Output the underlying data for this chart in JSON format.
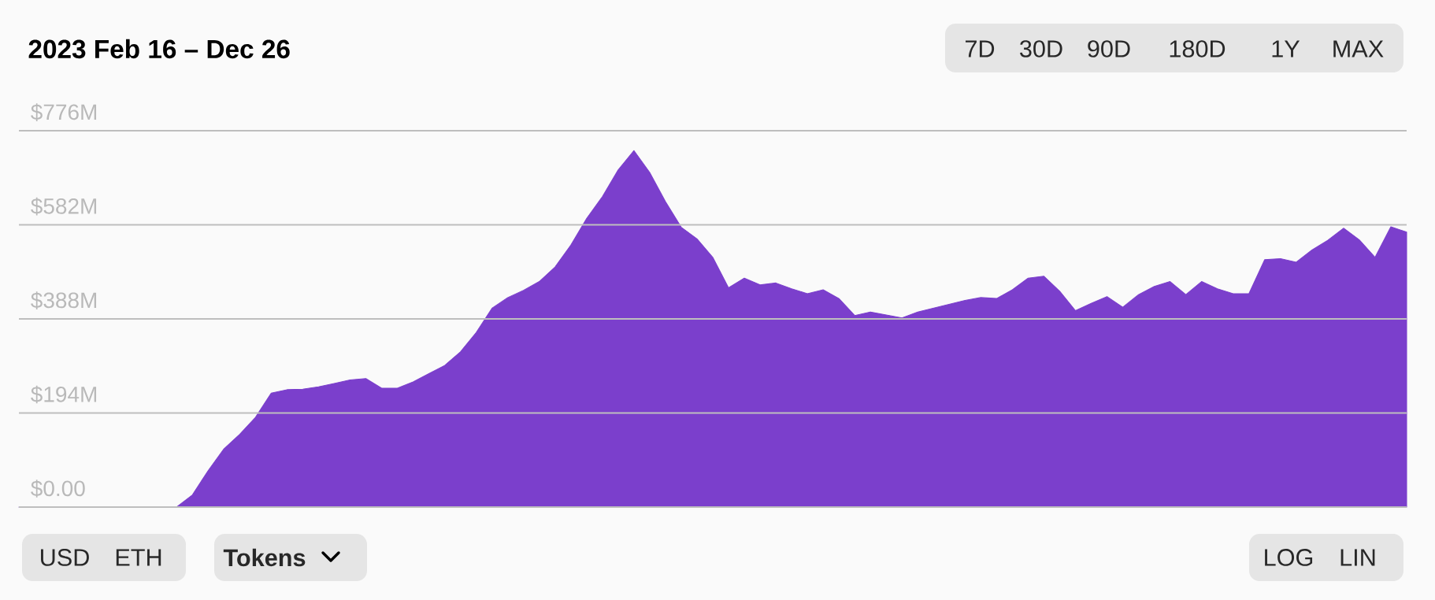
{
  "chart_data": {
    "type": "area",
    "title": "2023 Feb 16 – Dec 26",
    "categories": [
      null,
      null,
      null,
      null,
      null,
      null,
      null,
      null,
      null,
      null,
      null,
      null,
      null,
      null,
      null,
      null,
      null,
      null,
      null,
      null,
      null,
      null,
      null,
      null,
      null,
      null,
      null,
      null,
      null,
      null,
      null,
      null,
      null,
      null,
      null,
      null,
      null,
      null,
      null,
      null,
      null,
      null,
      null,
      null,
      null,
      null,
      null,
      null,
      null,
      null,
      null,
      null,
      null,
      null,
      null,
      null,
      null,
      null,
      null,
      null,
      null,
      null,
      null,
      null,
      null,
      null,
      null,
      null,
      null,
      null,
      null,
      null,
      null,
      null,
      null,
      null,
      null,
      null,
      null,
      null,
      null,
      null,
      null,
      null,
      null,
      null,
      null,
      null,
      null
    ],
    "series": [
      {
        "color": "#7b3fcc",
        "values": [
          0,
          0,
          0,
          0,
          0,
          0,
          0,
          0,
          0,
          0,
          0,
          25,
          75,
          120,
          150,
          185,
          235,
          242,
          243,
          248,
          255,
          262,
          265,
          245,
          245,
          258,
          275,
          292,
          320,
          360,
          410,
          432,
          447,
          465,
          495,
          540,
          595,
          640,
          695,
          735,
          690,
          630,
          577,
          553,
          515,
          452,
          472,
          458,
          462,
          450,
          440,
          448,
          430,
          395,
          402,
          396,
          390,
          402,
          410,
          418,
          426,
          432,
          430,
          448,
          472,
          476,
          445,
          405,
          420,
          434,
          412,
          438,
          455,
          465,
          438,
          465,
          450,
          440,
          440,
          510,
          512,
          505,
          530,
          550,
          575,
          551,
          515,
          578,
          567
        ]
      }
    ],
    "ylim": [
      0,
      776
    ],
    "yticks": [
      {
        "value": 0,
        "label": "$0.00"
      },
      {
        "value": 194,
        "label": "$194M"
      },
      {
        "value": 388,
        "label": "$388M"
      },
      {
        "value": 582,
        "label": "$582M"
      },
      {
        "value": 776,
        "label": "$776M"
      }
    ],
    "tick_labels": "y",
    "grid": "y",
    "annotations": [
      "7D",
      "30D",
      "90D",
      "180D",
      "1Y",
      "MAX",
      "USD",
      "ETH",
      "Tokens",
      "LOG",
      "LIN"
    ]
  }
}
